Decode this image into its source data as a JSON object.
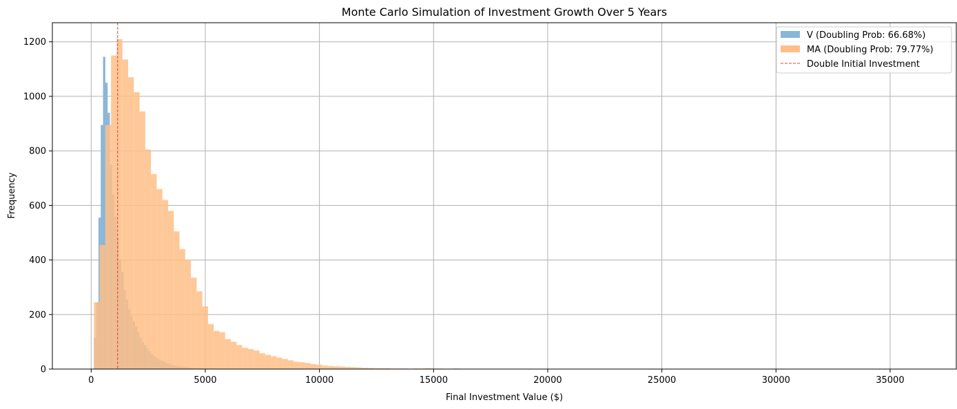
{
  "chart_data": {
    "type": "histogram",
    "title": "Monte Carlo Simulation of Investment Growth Over 5 Years",
    "xlabel": "Final Investment Value ($)",
    "ylabel": "Frequency",
    "xlim": [
      -1700,
      37900
    ],
    "ylim": [
      0,
      1270
    ],
    "xticks": [
      0,
      5000,
      10000,
      15000,
      20000,
      25000,
      30000,
      35000
    ],
    "yticks": [
      0,
      200,
      400,
      600,
      800,
      1000,
      1200
    ],
    "grid": true,
    "legend_position": "top-right",
    "reference_line": {
      "label": "Double Initial Investment",
      "x": 1160,
      "color": "#e83a3a"
    },
    "series": [
      {
        "name": "V (Doubling Prob: 66.68%)",
        "color": "#8ab5d7",
        "bin_start": 120,
        "bin_width": 100,
        "counts": [
          115,
          245,
          555,
          895,
          1145,
          1050,
          940,
          750,
          640,
          560,
          480,
          400,
          355,
          290,
          255,
          220,
          195,
          175,
          155,
          135,
          115,
          100,
          88,
          75,
          65,
          55,
          48,
          42,
          36,
          32,
          28,
          24,
          21,
          18,
          15,
          13,
          11,
          10,
          9,
          8,
          7,
          6,
          5,
          5,
          4,
          4,
          3,
          3,
          2,
          2,
          2,
          2,
          1,
          1,
          1,
          1
        ]
      },
      {
        "name": "MA (Doubling Prob: 79.77%)",
        "color": "#ffbe86",
        "bin_start": 120,
        "bin_width": 250,
        "counts": [
          245,
          455,
          895,
          1150,
          1210,
          1135,
          1070,
          1015,
          945,
          805,
          715,
          660,
          620,
          580,
          505,
          440,
          400,
          335,
          285,
          230,
          165,
          140,
          135,
          110,
          100,
          88,
          78,
          73,
          68,
          58,
          52,
          47,
          42,
          37,
          32,
          27,
          25,
          22,
          18,
          16,
          13,
          11,
          10,
          9,
          8,
          7,
          6,
          5,
          4,
          3,
          3,
          3,
          2,
          2,
          2,
          1,
          2,
          2,
          3,
          2,
          2,
          1,
          1,
          2,
          1,
          0,
          1,
          1,
          1,
          1,
          0,
          0,
          1,
          0,
          1,
          0,
          0,
          0,
          1,
          0,
          0,
          0,
          0,
          0,
          0,
          0,
          0,
          0,
          0,
          0,
          0,
          0,
          0,
          0,
          0,
          0,
          0,
          0,
          0,
          0,
          0,
          0,
          1
        ]
      }
    ]
  }
}
